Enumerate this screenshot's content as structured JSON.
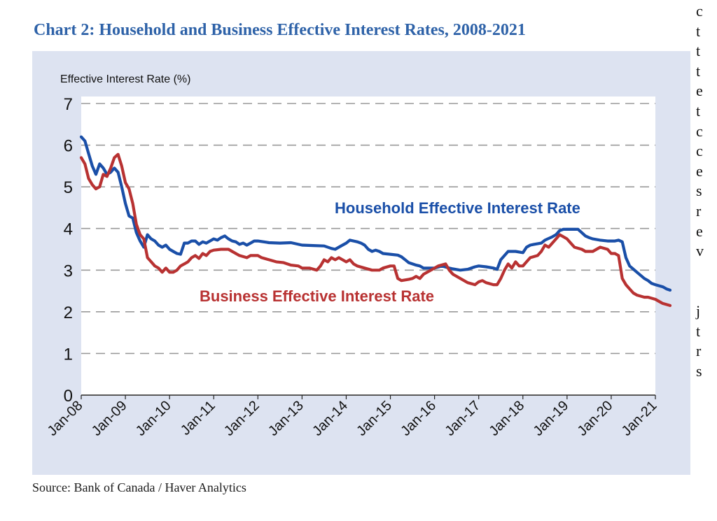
{
  "figure": {
    "title": "Chart 2: Household and Business Effective Interest Rates, 2008-2021",
    "source": "Source: Bank of Canada / Haver Analytics",
    "colors": {
      "title": "#2e62a8",
      "panel": "#dde3f1",
      "household": "#1a4fa8",
      "business": "#b83232",
      "grid": "#9a9a9a"
    }
  },
  "chart_data": {
    "type": "line",
    "ylabel": "Effective Interest Rate (%)",
    "ylim": [
      0,
      7
    ],
    "yticks": [
      "0",
      "1",
      "2",
      "3",
      "4",
      "5",
      "6",
      "7"
    ],
    "xlim": [
      "2008-01",
      "2021-01"
    ],
    "xticks": [
      {
        "label": "Jan-08",
        "date": "2008-01"
      },
      {
        "label": "Jan-09",
        "date": "2009-01"
      },
      {
        "label": "Jan-10",
        "date": "2010-01"
      },
      {
        "label": "Jan-11",
        "date": "2011-01"
      },
      {
        "label": "Jan-12",
        "date": "2012-01"
      },
      {
        "label": "Jan-13",
        "date": "2013-01"
      },
      {
        "label": "Jan-14",
        "date": "2014-01"
      },
      {
        "label": "Jan-15",
        "date": "2015-01"
      },
      {
        "label": "Jan-16",
        "date": "2016-01"
      },
      {
        "label": "Jan-17",
        "date": "2017-01"
      },
      {
        "label": "Jan-18",
        "date": "2018-01"
      },
      {
        "label": "Jan-19",
        "date": "2019-01"
      },
      {
        "label": "Jan-20",
        "date": "2020-01"
      },
      {
        "label": "Jan-21",
        "date": "2021-01"
      }
    ],
    "grid": "horizontal-dashed",
    "legend": "inline-labels",
    "series": [
      {
        "name": "Household Effective Interest Rate",
        "color": "#1a4fa8",
        "points": [
          [
            "2008-01",
            6.2
          ],
          [
            "2008-02",
            6.1
          ],
          [
            "2008-03",
            5.8
          ],
          [
            "2008-04",
            5.5
          ],
          [
            "2008-05",
            5.3
          ],
          [
            "2008-06",
            5.55
          ],
          [
            "2008-07",
            5.45
          ],
          [
            "2008-08",
            5.3
          ],
          [
            "2008-09",
            5.35
          ],
          [
            "2008-10",
            5.45
          ],
          [
            "2008-11",
            5.35
          ],
          [
            "2008-12",
            5.0
          ],
          [
            "2009-01",
            4.6
          ],
          [
            "2009-02",
            4.3
          ],
          [
            "2009-03",
            4.25
          ],
          [
            "2009-04",
            3.9
          ],
          [
            "2009-05",
            3.7
          ],
          [
            "2009-06",
            3.55
          ],
          [
            "2009-07",
            3.85
          ],
          [
            "2009-08",
            3.75
          ],
          [
            "2009-09",
            3.7
          ],
          [
            "2009-10",
            3.6
          ],
          [
            "2009-11",
            3.55
          ],
          [
            "2009-12",
            3.6
          ],
          [
            "2010-01",
            3.5
          ],
          [
            "2010-02",
            3.45
          ],
          [
            "2010-03",
            3.4
          ],
          [
            "2010-04",
            3.38
          ],
          [
            "2010-05",
            3.65
          ],
          [
            "2010-06",
            3.65
          ],
          [
            "2010-07",
            3.7
          ],
          [
            "2010-08",
            3.7
          ],
          [
            "2010-09",
            3.62
          ],
          [
            "2010-10",
            3.68
          ],
          [
            "2010-11",
            3.65
          ],
          [
            "2010-12",
            3.7
          ],
          [
            "2011-01",
            3.75
          ],
          [
            "2011-02",
            3.72
          ],
          [
            "2011-03",
            3.78
          ],
          [
            "2011-04",
            3.82
          ],
          [
            "2011-05",
            3.75
          ],
          [
            "2011-06",
            3.7
          ],
          [
            "2011-07",
            3.68
          ],
          [
            "2011-08",
            3.62
          ],
          [
            "2011-09",
            3.65
          ],
          [
            "2011-10",
            3.6
          ],
          [
            "2011-11",
            3.65
          ],
          [
            "2011-12",
            3.7
          ],
          [
            "2012-01",
            3.7
          ],
          [
            "2012-04",
            3.66
          ],
          [
            "2012-07",
            3.65
          ],
          [
            "2012-10",
            3.66
          ],
          [
            "2013-01",
            3.6
          ],
          [
            "2013-04",
            3.59
          ],
          [
            "2013-07",
            3.58
          ],
          [
            "2013-09",
            3.52
          ],
          [
            "2013-10",
            3.5
          ],
          [
            "2013-11",
            3.55
          ],
          [
            "2013-12",
            3.6
          ],
          [
            "2014-01",
            3.65
          ],
          [
            "2014-02",
            3.72
          ],
          [
            "2014-04",
            3.68
          ],
          [
            "2014-05",
            3.65
          ],
          [
            "2014-06",
            3.6
          ],
          [
            "2014-07",
            3.5
          ],
          [
            "2014-08",
            3.45
          ],
          [
            "2014-09",
            3.48
          ],
          [
            "2014-10",
            3.45
          ],
          [
            "2014-11",
            3.4
          ],
          [
            "2015-01",
            3.38
          ],
          [
            "2015-03",
            3.36
          ],
          [
            "2015-04",
            3.32
          ],
          [
            "2015-05",
            3.25
          ],
          [
            "2015-06",
            3.18
          ],
          [
            "2015-07",
            3.15
          ],
          [
            "2015-08",
            3.12
          ],
          [
            "2015-09",
            3.1
          ],
          [
            "2015-10",
            3.05
          ],
          [
            "2016-01",
            3.05
          ],
          [
            "2016-03",
            3.1
          ],
          [
            "2016-05",
            3.05
          ],
          [
            "2016-06",
            3.03
          ],
          [
            "2016-08",
            3.0
          ],
          [
            "2016-10",
            3.02
          ],
          [
            "2016-11",
            3.05
          ],
          [
            "2016-12",
            3.08
          ],
          [
            "2017-01",
            3.1
          ],
          [
            "2017-03",
            3.08
          ],
          [
            "2017-05",
            3.05
          ],
          [
            "2017-06",
            3.02
          ],
          [
            "2017-07",
            3.25
          ],
          [
            "2017-08",
            3.35
          ],
          [
            "2017-09",
            3.45
          ],
          [
            "2017-11",
            3.45
          ],
          [
            "2018-01",
            3.42
          ],
          [
            "2018-02",
            3.55
          ],
          [
            "2018-03",
            3.6
          ],
          [
            "2018-04",
            3.62
          ],
          [
            "2018-06",
            3.65
          ],
          [
            "2018-07",
            3.72
          ],
          [
            "2018-09",
            3.8
          ],
          [
            "2018-10",
            3.85
          ],
          [
            "2018-11",
            3.95
          ],
          [
            "2018-12",
            3.98
          ],
          [
            "2019-01",
            3.98
          ],
          [
            "2019-04",
            3.98
          ],
          [
            "2019-05",
            3.9
          ],
          [
            "2019-06",
            3.82
          ],
          [
            "2019-07",
            3.78
          ],
          [
            "2019-08",
            3.75
          ],
          [
            "2019-10",
            3.72
          ],
          [
            "2019-12",
            3.7
          ],
          [
            "2020-02",
            3.7
          ],
          [
            "2020-03",
            3.72
          ],
          [
            "2020-04",
            3.68
          ],
          [
            "2020-05",
            3.3
          ],
          [
            "2020-06",
            3.1
          ],
          [
            "2020-08",
            2.95
          ],
          [
            "2020-10",
            2.8
          ],
          [
            "2020-11",
            2.75
          ],
          [
            "2020-12",
            2.68
          ],
          [
            "2021-01",
            2.65
          ],
          [
            "2021-03",
            2.6
          ],
          [
            "2021-04",
            2.55
          ],
          [
            "2021-05",
            2.52
          ]
        ]
      },
      {
        "name": "Business Effective Interest Rate",
        "color": "#b83232",
        "points": [
          [
            "2008-01",
            5.7
          ],
          [
            "2008-02",
            5.55
          ],
          [
            "2008-03",
            5.2
          ],
          [
            "2008-04",
            5.05
          ],
          [
            "2008-05",
            4.95
          ],
          [
            "2008-06",
            5.0
          ],
          [
            "2008-07",
            5.3
          ],
          [
            "2008-08",
            5.25
          ],
          [
            "2008-09",
            5.45
          ],
          [
            "2008-10",
            5.7
          ],
          [
            "2008-11",
            5.78
          ],
          [
            "2008-12",
            5.5
          ],
          [
            "2009-01",
            5.1
          ],
          [
            "2009-02",
            4.95
          ],
          [
            "2009-03",
            4.6
          ],
          [
            "2009-04",
            4.1
          ],
          [
            "2009-05",
            3.85
          ],
          [
            "2009-06",
            3.75
          ],
          [
            "2009-07",
            3.3
          ],
          [
            "2009-08",
            3.2
          ],
          [
            "2009-09",
            3.1
          ],
          [
            "2009-10",
            3.05
          ],
          [
            "2009-11",
            2.95
          ],
          [
            "2009-12",
            3.05
          ],
          [
            "2010-01",
            2.95
          ],
          [
            "2010-02",
            2.95
          ],
          [
            "2010-03",
            3.0
          ],
          [
            "2010-04",
            3.1
          ],
          [
            "2010-05",
            3.15
          ],
          [
            "2010-06",
            3.2
          ],
          [
            "2010-07",
            3.3
          ],
          [
            "2010-08",
            3.35
          ],
          [
            "2010-09",
            3.28
          ],
          [
            "2010-10",
            3.4
          ],
          [
            "2010-11",
            3.35
          ],
          [
            "2010-12",
            3.45
          ],
          [
            "2011-01",
            3.48
          ],
          [
            "2011-03",
            3.5
          ],
          [
            "2011-05",
            3.5
          ],
          [
            "2011-06",
            3.45
          ],
          [
            "2011-08",
            3.35
          ],
          [
            "2011-10",
            3.3
          ],
          [
            "2011-11",
            3.35
          ],
          [
            "2012-01",
            3.35
          ],
          [
            "2012-02",
            3.3
          ],
          [
            "2012-04",
            3.25
          ],
          [
            "2012-06",
            3.2
          ],
          [
            "2012-08",
            3.18
          ],
          [
            "2012-10",
            3.12
          ],
          [
            "2012-12",
            3.1
          ],
          [
            "2013-01",
            3.05
          ],
          [
            "2013-03",
            3.05
          ],
          [
            "2013-05",
            3.0
          ],
          [
            "2013-06",
            3.1
          ],
          [
            "2013-07",
            3.25
          ],
          [
            "2013-08",
            3.2
          ],
          [
            "2013-09",
            3.3
          ],
          [
            "2013-10",
            3.25
          ],
          [
            "2013-11",
            3.3
          ],
          [
            "2013-12",
            3.25
          ],
          [
            "2014-01",
            3.2
          ],
          [
            "2014-02",
            3.25
          ],
          [
            "2014-03",
            3.15
          ],
          [
            "2014-04",
            3.1
          ],
          [
            "2014-06",
            3.05
          ],
          [
            "2014-08",
            3.0
          ],
          [
            "2014-10",
            3.0
          ],
          [
            "2014-11",
            3.05
          ],
          [
            "2015-01",
            3.1
          ],
          [
            "2015-02",
            3.1
          ],
          [
            "2015-03",
            2.8
          ],
          [
            "2015-04",
            2.75
          ],
          [
            "2015-06",
            2.78
          ],
          [
            "2015-07",
            2.8
          ],
          [
            "2015-08",
            2.85
          ],
          [
            "2015-09",
            2.8
          ],
          [
            "2015-10",
            2.9
          ],
          [
            "2015-12",
            3.0
          ],
          [
            "2016-02",
            3.1
          ],
          [
            "2016-04",
            3.15
          ],
          [
            "2016-05",
            3.0
          ],
          [
            "2016-06",
            2.9
          ],
          [
            "2016-08",
            2.8
          ],
          [
            "2016-10",
            2.7
          ],
          [
            "2016-12",
            2.65
          ],
          [
            "2017-01",
            2.72
          ],
          [
            "2017-02",
            2.75
          ],
          [
            "2017-03",
            2.7
          ],
          [
            "2017-05",
            2.65
          ],
          [
            "2017-06",
            2.65
          ],
          [
            "2017-07",
            2.8
          ],
          [
            "2017-08",
            3.0
          ],
          [
            "2017-09",
            3.15
          ],
          [
            "2017-10",
            3.05
          ],
          [
            "2017-11",
            3.2
          ],
          [
            "2017-12",
            3.1
          ],
          [
            "2018-01",
            3.1
          ],
          [
            "2018-02",
            3.2
          ],
          [
            "2018-03",
            3.3
          ],
          [
            "2018-05",
            3.35
          ],
          [
            "2018-06",
            3.45
          ],
          [
            "2018-07",
            3.6
          ],
          [
            "2018-08",
            3.55
          ],
          [
            "2018-09",
            3.65
          ],
          [
            "2018-10",
            3.75
          ],
          [
            "2018-11",
            3.85
          ],
          [
            "2018-12",
            3.8
          ],
          [
            "2019-01",
            3.75
          ],
          [
            "2019-02",
            3.65
          ],
          [
            "2019-03",
            3.55
          ],
          [
            "2019-05",
            3.5
          ],
          [
            "2019-06",
            3.45
          ],
          [
            "2019-08",
            3.45
          ],
          [
            "2019-09",
            3.5
          ],
          [
            "2019-10",
            3.55
          ],
          [
            "2019-12",
            3.5
          ],
          [
            "2020-01",
            3.4
          ],
          [
            "2020-02",
            3.4
          ],
          [
            "2020-03",
            3.35
          ],
          [
            "2020-04",
            2.8
          ],
          [
            "2020-05",
            2.65
          ],
          [
            "2020-06",
            2.55
          ],
          [
            "2020-07",
            2.45
          ],
          [
            "2020-08",
            2.4
          ],
          [
            "2020-10",
            2.35
          ],
          [
            "2020-11",
            2.35
          ],
          [
            "2021-01",
            2.3
          ],
          [
            "2021-02",
            2.25
          ],
          [
            "2021-03",
            2.2
          ],
          [
            "2021-05",
            2.15
          ]
        ]
      }
    ]
  },
  "margin_letters": [
    "c",
    "t",
    "t",
    "t",
    "e",
    "t",
    "c",
    "c",
    "e",
    "s",
    "r",
    "e",
    "v",
    "",
    "",
    "j",
    "t",
    "r",
    "s"
  ]
}
